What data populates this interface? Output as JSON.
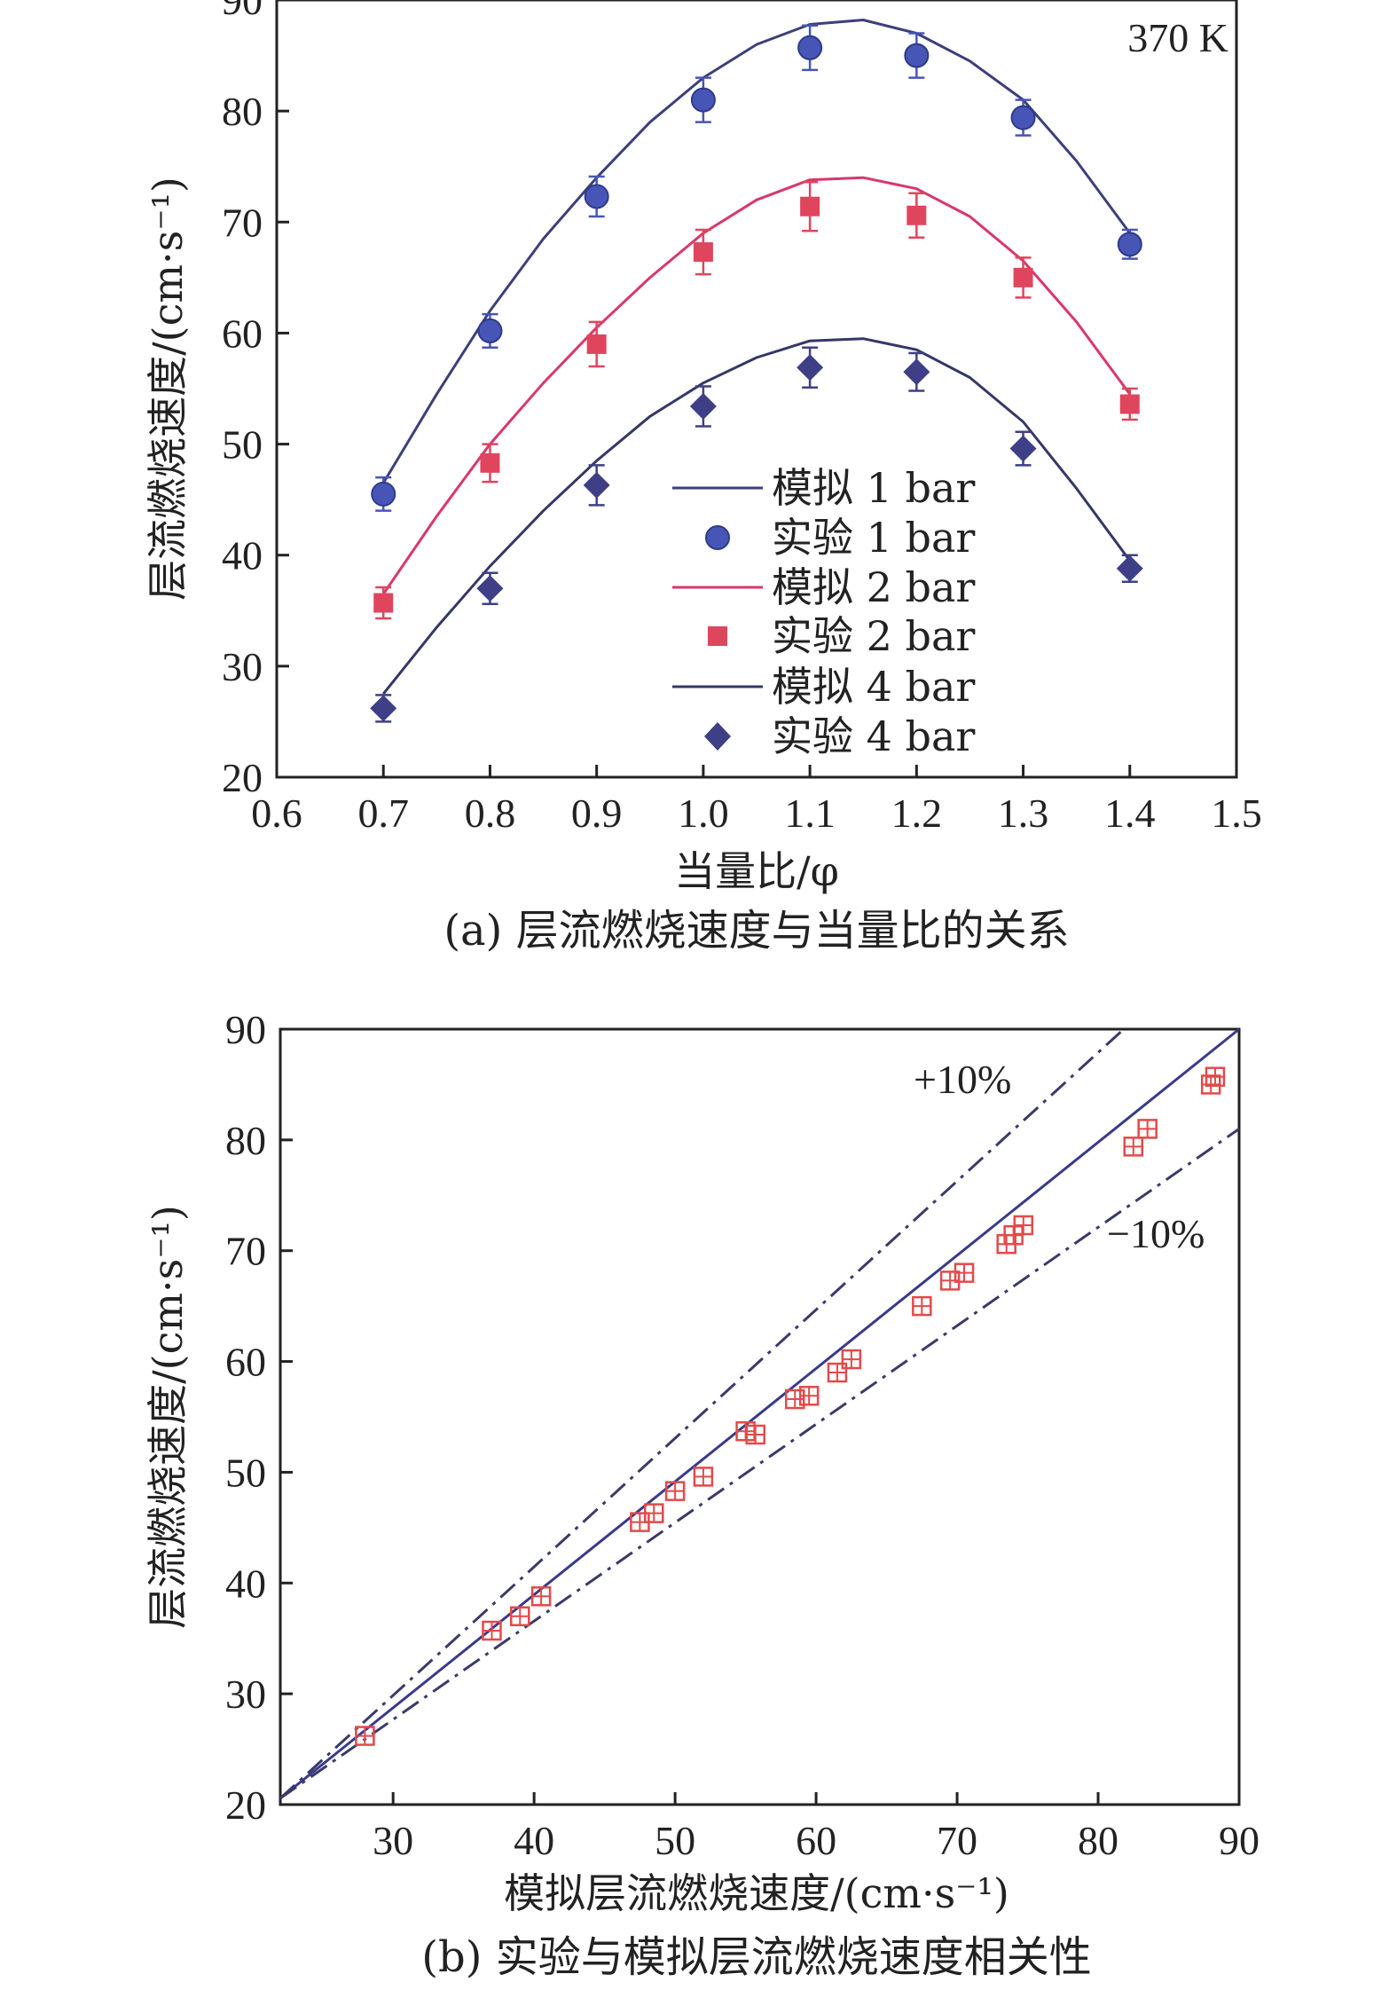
{
  "colors": {
    "bar1": "#3c3f7a",
    "bar1_marker": "#4756b6",
    "bar2": "#d8386a",
    "bar2_marker": "#e0455e",
    "bar4": "#343866",
    "bar4_marker": "#3e3f86",
    "diag": "#3a3a8a",
    "band": "#3a3a6a",
    "corr_marker": "#e24a4a"
  },
  "chart_data": [
    {
      "type": "line",
      "annotation": "370 K",
      "xlabel": "当量比/φ",
      "ylabel": "层流燃烧速度/(cm·s⁻¹)",
      "caption": "(a) 层流燃烧速度与当量比的关系",
      "xlim": [
        0.6,
        1.5
      ],
      "ylim": [
        20,
        90
      ],
      "xticks": [
        "0.6",
        "0.7",
        "0.8",
        "0.9",
        "1.0",
        "1.1",
        "1.2",
        "1.3",
        "1.4",
        "1.5"
      ],
      "yticks": [
        "20",
        "30",
        "40",
        "50",
        "60",
        "70",
        "80",
        "90"
      ],
      "legend_position": "center",
      "series": [
        {
          "name": "模拟 1 bar",
          "kind": "line",
          "color_key": "bar1",
          "x": [
            0.7,
            0.75,
            0.8,
            0.85,
            0.9,
            0.95,
            1.0,
            1.05,
            1.1,
            1.15,
            1.2,
            1.25,
            1.3,
            1.35,
            1.4
          ],
          "values": [
            46.5,
            54.5,
            62.0,
            68.5,
            74.0,
            79.0,
            83.0,
            86.0,
            87.8,
            88.2,
            87.0,
            84.5,
            81.0,
            75.5,
            69.0
          ]
        },
        {
          "name": "实验 1 bar",
          "kind": "marker",
          "marker": "circle",
          "color_key": "bar1_marker",
          "x": [
            0.7,
            0.8,
            0.9,
            1.0,
            1.1,
            1.2,
            1.3,
            1.4
          ],
          "values": [
            45.5,
            60.2,
            72.3,
            81.0,
            85.7,
            85.0,
            79.4,
            68.0
          ],
          "err": [
            1.5,
            1.5,
            1.8,
            2.0,
            2.0,
            2.0,
            1.6,
            1.3
          ]
        },
        {
          "name": "模拟 2 bar",
          "kind": "line",
          "color_key": "bar2",
          "x": [
            0.7,
            0.75,
            0.8,
            0.85,
            0.9,
            0.95,
            1.0,
            1.05,
            1.1,
            1.15,
            1.2,
            1.25,
            1.3,
            1.35,
            1.4
          ],
          "values": [
            36.5,
            43.5,
            50.0,
            55.5,
            60.5,
            65.0,
            69.0,
            72.0,
            73.8,
            74.0,
            73.0,
            70.5,
            66.5,
            61.0,
            54.5
          ]
        },
        {
          "name": "实验 2 bar",
          "kind": "marker",
          "marker": "square",
          "color_key": "bar2_marker",
          "x": [
            0.7,
            0.8,
            0.9,
            1.0,
            1.1,
            1.2,
            1.3,
            1.4
          ],
          "values": [
            35.7,
            48.3,
            59.0,
            67.3,
            71.4,
            70.6,
            65.0,
            53.6
          ],
          "err": [
            1.4,
            1.7,
            2.0,
            2.0,
            2.2,
            2.0,
            1.8,
            1.4
          ]
        },
        {
          "name": "模拟 4 bar",
          "kind": "line",
          "color_key": "bar4",
          "x": [
            0.7,
            0.75,
            0.8,
            0.85,
            0.9,
            0.95,
            1.0,
            1.05,
            1.1,
            1.15,
            1.2,
            1.25,
            1.3,
            1.35,
            1.4
          ],
          "values": [
            27.5,
            33.5,
            39.0,
            44.0,
            48.5,
            52.5,
            55.5,
            57.8,
            59.3,
            59.5,
            58.5,
            56.0,
            52.0,
            46.0,
            39.5
          ]
        },
        {
          "name": "实验 4 bar",
          "kind": "marker",
          "marker": "diamond",
          "color_key": "bar4_marker",
          "x": [
            0.7,
            0.8,
            0.9,
            1.0,
            1.1,
            1.2,
            1.3,
            1.4
          ],
          "values": [
            26.2,
            37.0,
            46.3,
            53.4,
            56.9,
            56.5,
            49.6,
            38.8
          ],
          "err": [
            1.2,
            1.4,
            1.8,
            1.8,
            1.8,
            1.7,
            1.5,
            1.2
          ]
        }
      ]
    },
    {
      "type": "scatter",
      "xlabel": "模拟层流燃烧速度/(cm·s⁻¹)",
      "ylabel": "层流燃烧速度/(cm·s⁻¹)",
      "caption": "(b) 实验与模拟层流燃烧速度相关性",
      "xlim": [
        22,
        90
      ],
      "ylim": [
        20,
        90
      ],
      "xticks": [
        "30",
        "40",
        "50",
        "60",
        "70",
        "80",
        "90"
      ],
      "yticks": [
        "20",
        "30",
        "40",
        "50",
        "60",
        "70",
        "80",
        "90"
      ],
      "band_labels": {
        "upper": "+10%",
        "lower": "−10%"
      },
      "points": {
        "x": [
          28.0,
          37.0,
          39.0,
          40.5,
          47.5,
          48.5,
          50.0,
          52.0,
          55.0,
          55.7,
          58.5,
          59.5,
          61.5,
          62.5,
          67.5,
          69.5,
          70.5,
          73.5,
          74.0,
          74.7,
          82.5,
          83.5,
          88.0,
          88.3
        ],
        "y": [
          26.2,
          35.7,
          37.0,
          38.8,
          45.5,
          46.3,
          48.3,
          49.6,
          53.7,
          53.4,
          56.6,
          56.9,
          59.0,
          60.2,
          65.0,
          67.3,
          68.0,
          70.6,
          71.4,
          72.3,
          79.4,
          81.0,
          85.0,
          85.7
        ]
      }
    }
  ]
}
